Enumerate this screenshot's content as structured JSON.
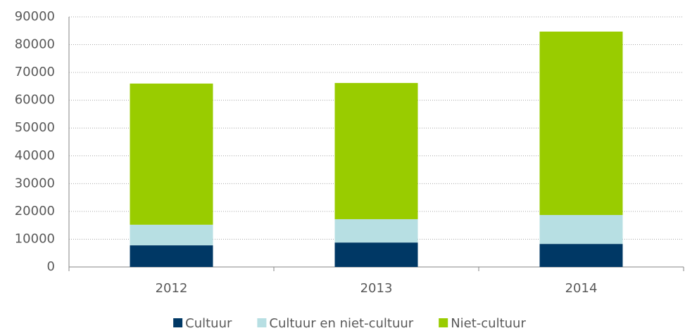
{
  "chart_data": {
    "type": "stacked_bar",
    "categories": [
      "2012",
      "2013",
      "2014"
    ],
    "series": [
      {
        "name": "Cultuur",
        "color": "#003865",
        "values": [
          7800,
          8800,
          8300
        ]
      },
      {
        "name": "Cultuur en niet-cultuur",
        "color": "#b7dfe3",
        "values": [
          7400,
          8400,
          10400
        ]
      },
      {
        "name": "Niet-cultuur",
        "color": "#99cc00",
        "values": [
          50800,
          49000,
          66000
        ]
      }
    ],
    "ylim": [
      0,
      90000
    ],
    "yticks": [
      0,
      10000,
      20000,
      30000,
      40000,
      50000,
      60000,
      70000,
      80000,
      90000
    ],
    "grid": true,
    "legend": "bottom"
  }
}
